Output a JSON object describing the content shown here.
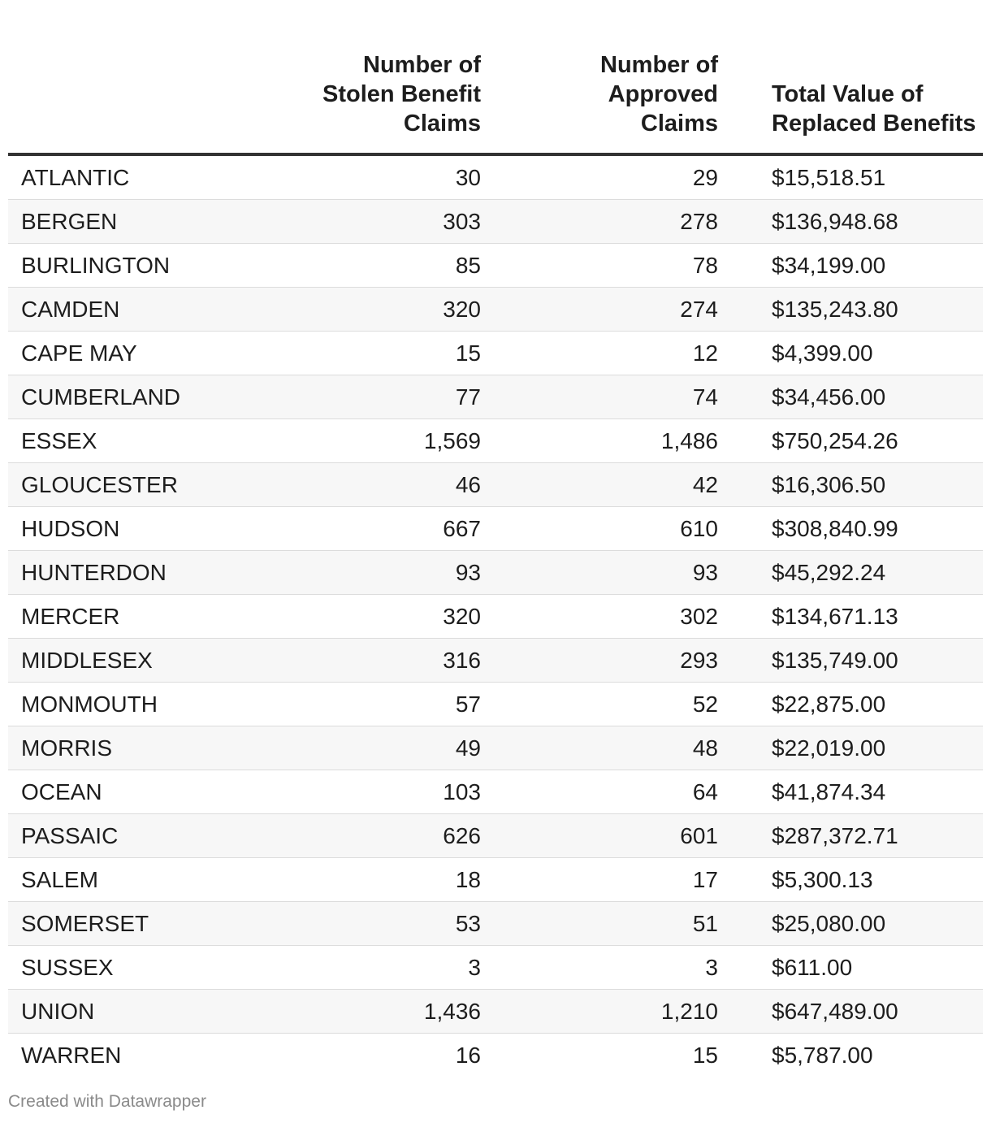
{
  "chart_data": {
    "type": "table",
    "columns": [
      "",
      "Number of Stolen Benefit Claims",
      "Number of Approved Claims",
      "Total Value of Replaced Benefits"
    ],
    "header_lines": {
      "stolen": [
        "Number of",
        "Stolen Benefit",
        "Claims"
      ],
      "approved": [
        "Number of",
        "Approved",
        "Claims"
      ],
      "value": [
        "Total Value of",
        "Replaced Benefits"
      ]
    },
    "rows": [
      {
        "county": "ATLANTIC",
        "stolen": "30",
        "approved": "29",
        "value": "$15,518.51"
      },
      {
        "county": "BERGEN",
        "stolen": "303",
        "approved": "278",
        "value": "$136,948.68"
      },
      {
        "county": "BURLINGTON",
        "stolen": "85",
        "approved": "78",
        "value": "$34,199.00"
      },
      {
        "county": "CAMDEN",
        "stolen": "320",
        "approved": "274",
        "value": "$135,243.80"
      },
      {
        "county": "CAPE MAY",
        "stolen": "15",
        "approved": "12",
        "value": "$4,399.00"
      },
      {
        "county": "CUMBERLAND",
        "stolen": "77",
        "approved": "74",
        "value": "$34,456.00"
      },
      {
        "county": "ESSEX",
        "stolen": "1,569",
        "approved": "1,486",
        "value": "$750,254.26"
      },
      {
        "county": "GLOUCESTER",
        "stolen": "46",
        "approved": "42",
        "value": "$16,306.50"
      },
      {
        "county": "HUDSON",
        "stolen": "667",
        "approved": "610",
        "value": "$308,840.99"
      },
      {
        "county": "HUNTERDON",
        "stolen": "93",
        "approved": "93",
        "value": "$45,292.24"
      },
      {
        "county": "MERCER",
        "stolen": "320",
        "approved": "302",
        "value": "$134,671.13"
      },
      {
        "county": "MIDDLESEX",
        "stolen": "316",
        "approved": "293",
        "value": "$135,749.00"
      },
      {
        "county": "MONMOUTH",
        "stolen": "57",
        "approved": "52",
        "value": "$22,875.00"
      },
      {
        "county": "MORRIS",
        "stolen": "49",
        "approved": "48",
        "value": "$22,019.00"
      },
      {
        "county": "OCEAN",
        "stolen": "103",
        "approved": "64",
        "value": "$41,874.34"
      },
      {
        "county": "PASSAIC",
        "stolen": "626",
        "approved": "601",
        "value": "$287,372.71"
      },
      {
        "county": "SALEM",
        "stolen": "18",
        "approved": "17",
        "value": "$5,300.13"
      },
      {
        "county": "SOMERSET",
        "stolen": "53",
        "approved": "51",
        "value": "$25,080.00"
      },
      {
        "county": "SUSSEX",
        "stolen": "3",
        "approved": "3",
        "value": "$611.00"
      },
      {
        "county": "UNION",
        "stolen": "1,436",
        "approved": "1,210",
        "value": "$647,489.00"
      },
      {
        "county": "WARREN",
        "stolen": "16",
        "approved": "15",
        "value": "$5,787.00"
      }
    ]
  },
  "footer": {
    "credit": "Created with Datawrapper"
  }
}
